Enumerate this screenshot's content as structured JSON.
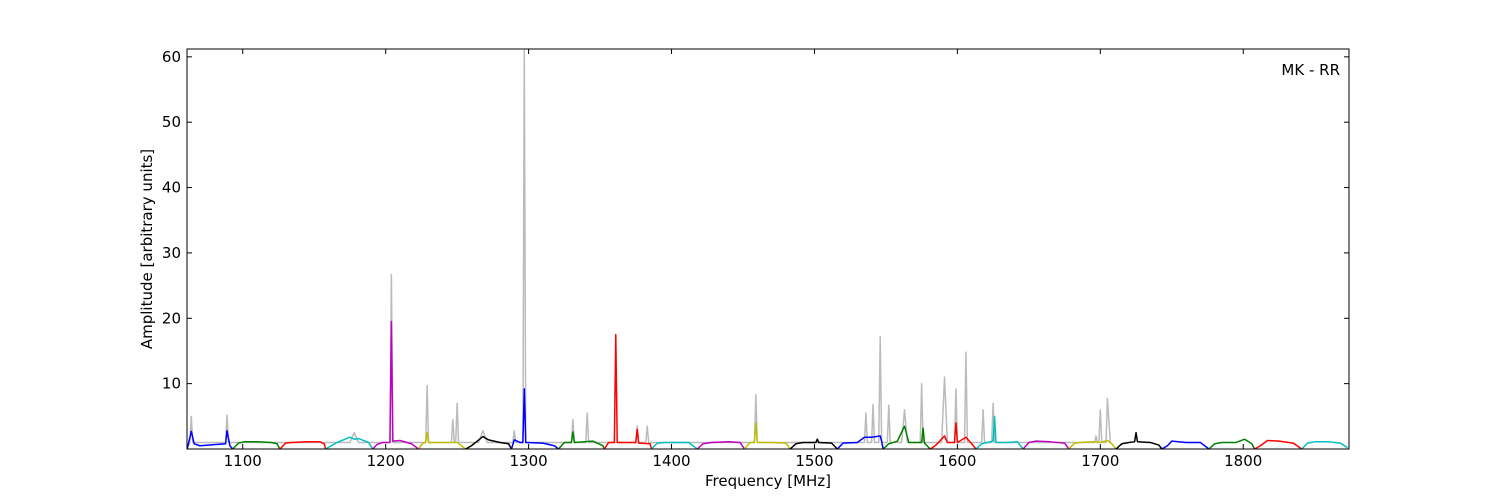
{
  "chart_data": {
    "type": "line",
    "xlabel": "Frequency [MHz]",
    "ylabel": "Amplitude [arbitrary units]",
    "annotation": "MK - RR",
    "xlim": [
      1061,
      1874
    ],
    "ylim": [
      0,
      61.2
    ],
    "xticks": [
      1100,
      1200,
      1300,
      1400,
      1500,
      1600,
      1700,
      1800
    ],
    "yticks": [
      10,
      20,
      30,
      40,
      50,
      60
    ],
    "series": [
      {
        "color": "#bbbbbb",
        "x": [
          1061,
          1063,
          1064,
          1065,
          1088,
          1089,
          1090,
          1175,
          1178,
          1181,
          1203,
          1204,
          1205,
          1228,
          1229,
          1230,
          1246,
          1247,
          1248,
          1249,
          1250,
          1251,
          1265,
          1268,
          1271,
          1289,
          1290,
          1291,
          1296,
          1297,
          1298,
          1330,
          1331,
          1332,
          1340,
          1341,
          1342,
          1375,
          1376,
          1377,
          1382,
          1383,
          1384,
          1458,
          1459,
          1460,
          1535,
          1536,
          1537,
          1540,
          1541,
          1542,
          1545,
          1546,
          1547,
          1551,
          1552,
          1553,
          1561,
          1563,
          1565,
          1574,
          1575,
          1576,
          1589,
          1591,
          1593,
          1598,
          1599,
          1600,
          1605,
          1606,
          1607,
          1617,
          1618,
          1619,
          1624,
          1625,
          1626,
          1696,
          1697,
          1698,
          1699,
          1700,
          1701,
          1704,
          1705,
          1707
        ],
        "values": [
          0,
          1,
          5,
          1,
          1,
          5.2,
          1,
          1,
          2.5,
          1,
          1,
          26.7,
          1,
          1,
          9.7,
          1,
          1,
          4.5,
          1,
          1,
          7,
          1,
          1,
          2.8,
          1,
          1,
          2.8,
          1,
          1,
          61,
          1,
          1,
          4.5,
          1,
          1,
          5.5,
          1,
          1,
          3.5,
          1,
          1,
          3.5,
          1,
          1,
          8.3,
          1,
          1,
          5.5,
          1,
          1,
          6.8,
          1,
          1,
          17.2,
          1,
          1,
          6.7,
          1,
          1,
          6,
          1,
          1,
          10,
          1,
          1,
          11,
          1,
          1,
          9.2,
          1,
          1,
          14.8,
          1,
          1,
          6,
          1,
          1,
          7,
          1,
          1,
          2,
          1,
          1,
          6,
          1,
          1,
          7.7,
          1
        ]
      },
      {
        "color": "#0000ff",
        "x": [
          1061,
          1062,
          1064,
          1066,
          1070,
          1088,
          1089,
          1091,
          1093
        ],
        "values": [
          0,
          0.8,
          2.7,
          0.8,
          0.5,
          0.8,
          2.8,
          0.5,
          0
        ]
      },
      {
        "color": "#008000",
        "x": [
          1093,
          1097,
          1101,
          1110,
          1120,
          1124,
          1126
        ],
        "values": [
          0,
          0.9,
          1.1,
          1.1,
          1.0,
          0.8,
          0
        ]
      },
      {
        "color": "#ff0000",
        "x": [
          1126,
          1130,
          1134,
          1145,
          1154,
          1157,
          1158
        ],
        "values": [
          0,
          0.9,
          1.0,
          1.1,
          1.1,
          0.8,
          0
        ]
      },
      {
        "color": "#00bfbf",
        "x": [
          1158,
          1162,
          1166,
          1175,
          1178,
          1181,
          1188,
          1191
        ],
        "values": [
          0,
          0.5,
          1.0,
          1.8,
          1.5,
          1.6,
          1.0,
          0
        ]
      },
      {
        "color": "#bf00bf",
        "x": [
          1191,
          1194,
          1198,
          1203,
          1204,
          1205,
          1210,
          1218,
          1223
        ],
        "values": [
          0,
          0.7,
          1.0,
          1.0,
          19.5,
          1.2,
          1.3,
          0.8,
          0
        ]
      },
      {
        "color": "#bfbf00",
        "x": [
          1223,
          1226,
          1228,
          1229,
          1230,
          1240,
          1250,
          1256
        ],
        "values": [
          0,
          0.9,
          1.0,
          2.5,
          1.0,
          1.0,
          1.0,
          0
        ]
      },
      {
        "color": "#000000",
        "x": [
          1256,
          1260,
          1264,
          1268,
          1272,
          1280,
          1286,
          1288
        ],
        "values": [
          0,
          0.5,
          1.2,
          1.9,
          1.4,
          1.0,
          0.8,
          0
        ]
      },
      {
        "color": "#0000ff",
        "x": [
          1288,
          1290,
          1294,
          1296,
          1297,
          1298,
          1310,
          1318,
          1321
        ],
        "values": [
          0,
          1.4,
          1.0,
          1.0,
          9.2,
          1.0,
          0.9,
          0.5,
          0
        ]
      },
      {
        "color": "#008000",
        "x": [
          1321,
          1325,
          1329,
          1330,
          1331,
          1332,
          1345,
          1352,
          1353
        ],
        "values": [
          0,
          1.0,
          1.0,
          1.0,
          2.6,
          1.0,
          1.2,
          0.5,
          0
        ]
      },
      {
        "color": "#ff0000",
        "x": [
          1353,
          1356,
          1360,
          1361,
          1362,
          1370,
          1375,
          1376,
          1377,
          1385,
          1386
        ],
        "values": [
          0,
          1.0,
          1.0,
          17.5,
          1.0,
          1.0,
          1.0,
          3.0,
          0.9,
          0.8,
          0
        ]
      },
      {
        "color": "#00bfbf",
        "x": [
          1386,
          1390,
          1395,
          1405,
          1412,
          1418
        ],
        "values": [
          0,
          0.9,
          1.0,
          1.0,
          1.0,
          0
        ]
      },
      {
        "color": "#bf00bf",
        "x": [
          1418,
          1422,
          1428,
          1440,
          1448,
          1451
        ],
        "values": [
          0,
          0.8,
          1.0,
          1.1,
          1.0,
          0
        ]
      },
      {
        "color": "#bfbf00",
        "x": [
          1451,
          1455,
          1458,
          1459,
          1460,
          1470,
          1480,
          1483
        ],
        "values": [
          0,
          1.0,
          1.0,
          4.0,
          1.0,
          1.0,
          0.9,
          0
        ]
      },
      {
        "color": "#000000",
        "x": [
          1483,
          1487,
          1492,
          1501,
          1502,
          1503,
          1512,
          1516
        ],
        "values": [
          0,
          0.8,
          1.0,
          1.0,
          1.5,
          1.0,
          0.9,
          0
        ]
      },
      {
        "color": "#0000ff",
        "x": [
          1516,
          1520,
          1530,
          1535,
          1540,
          1546,
          1547,
          1548
        ],
        "values": [
          0,
          0.9,
          1.0,
          1.8,
          1.8,
          2.0,
          1.2,
          0
        ]
      },
      {
        "color": "#008000",
        "x": [
          1548,
          1552,
          1558,
          1563,
          1566,
          1575,
          1576,
          1577,
          1581
        ],
        "values": [
          0,
          0.8,
          1.2,
          3.5,
          1.0,
          1.0,
          3.2,
          0.9,
          0
        ]
      },
      {
        "color": "#ff0000",
        "x": [
          1581,
          1585,
          1591,
          1593,
          1598,
          1599,
          1600,
          1606,
          1610,
          1613
        ],
        "values": [
          0,
          0.6,
          2.0,
          1.0,
          1.0,
          4.0,
          1.0,
          1.8,
          0.8,
          0
        ]
      },
      {
        "color": "#00bfbf",
        "x": [
          1613,
          1617,
          1621,
          1625,
          1626,
          1627,
          1635,
          1642,
          1646
        ],
        "values": [
          0,
          0.8,
          1.0,
          1.2,
          5.0,
          1.0,
          1.0,
          1.1,
          0
        ]
      },
      {
        "color": "#bf00bf",
        "x": [
          1646,
          1650,
          1655,
          1665,
          1675,
          1678
        ],
        "values": [
          0,
          1.0,
          1.2,
          1.1,
          0.9,
          0
        ]
      },
      {
        "color": "#bfbf00",
        "x": [
          1678,
          1682,
          1686,
          1695,
          1700,
          1705,
          1708,
          1711
        ],
        "values": [
          0,
          0.9,
          1.0,
          1.1,
          1.0,
          1.3,
          0.8,
          0
        ]
      },
      {
        "color": "#000000",
        "x": [
          1711,
          1715,
          1720,
          1724,
          1725,
          1726,
          1735,
          1741,
          1743
        ],
        "values": [
          0,
          0.8,
          1.0,
          1.1,
          2.5,
          1.1,
          1.0,
          0.6,
          0
        ]
      },
      {
        "color": "#0000ff",
        "x": [
          1743,
          1747,
          1750,
          1760,
          1770,
          1776
        ],
        "values": [
          0,
          0.5,
          1.2,
          1.0,
          1.0,
          0
        ]
      },
      {
        "color": "#008000",
        "x": [
          1776,
          1780,
          1785,
          1795,
          1801,
          1806,
          1808
        ],
        "values": [
          0,
          0.8,
          1.0,
          1.0,
          1.5,
          0.8,
          0
        ]
      },
      {
        "color": "#ff0000",
        "x": [
          1808,
          1812,
          1817,
          1825,
          1835,
          1841
        ],
        "values": [
          0,
          0.5,
          1.3,
          1.2,
          0.9,
          0
        ]
      },
      {
        "color": "#00bfbf",
        "x": [
          1841,
          1845,
          1850,
          1860,
          1868,
          1873
        ],
        "values": [
          0,
          0.9,
          1.1,
          1.1,
          0.9,
          0.2
        ]
      }
    ]
  }
}
